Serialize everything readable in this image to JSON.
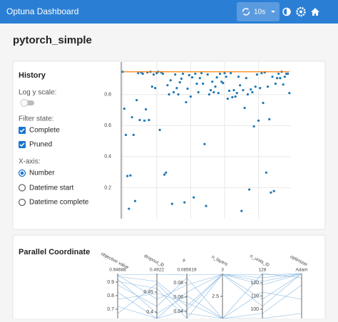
{
  "header": {
    "title": "Optuna Dashboard",
    "refresh": "10s"
  },
  "study_title": "pytorch_simple",
  "history": {
    "title": "History",
    "log_scale_label": "Log y scale:",
    "filter_label": "Filter state:",
    "filters": [
      "Complete",
      "Pruned"
    ],
    "xaxis_label": "X-axis:",
    "xaxis_options": [
      "Number",
      "Datetime start",
      "Datetime complete"
    ],
    "chart_data": {
      "type": "scatter",
      "color": "#1f77b4",
      "best_color": "#ff7f0e",
      "best_value": 0.947,
      "x": [
        0,
        1,
        2,
        3,
        4,
        5,
        6,
        7,
        8,
        9,
        10,
        11,
        12,
        13,
        14,
        15,
        16,
        17,
        18,
        19,
        20,
        21,
        22,
        23,
        24,
        25,
        26,
        27,
        28,
        29,
        30,
        31,
        32,
        33,
        34,
        35,
        36,
        37,
        38,
        39,
        40,
        41,
        42,
        43,
        44,
        45,
        46,
        47,
        48,
        49,
        50,
        51,
        52,
        53,
        54,
        55,
        56,
        57,
        58,
        59,
        60,
        61,
        62,
        63,
        64,
        65,
        66,
        67,
        68,
        69,
        70,
        71,
        72,
        73,
        74,
        75,
        76,
        77,
        78,
        79,
        80,
        81,
        82,
        83,
        84,
        85,
        86,
        87,
        88,
        89,
        90,
        91,
        92,
        93,
        94,
        95,
        96,
        97,
        98,
        99,
        100,
        101,
        102,
        103,
        104,
        105,
        106,
        107,
        108
      ],
      "values": [
        0.947,
        0.709,
        0.54,
        0.275,
        0.064,
        0.279,
        0.654,
        0.54,
        0.114,
        0.764,
        0.938,
        0.636,
        0.943,
        0.934,
        0.632,
        0.705,
        0.943,
        0.636,
        0.947,
        0.851,
        0.929,
        0.842,
        0.938,
        0.947,
        0.572,
        0.943,
        0.934,
        0.284,
        0.297,
        0.86,
        0.801,
        0.892,
        0.096,
        0.815,
        0.929,
        0.842,
        0.801,
        0.879,
        0.902,
        0.934,
        0.105,
        0.751,
        0.838,
        0.925,
        0.787,
        0.911,
        0.137,
        0.934,
        0.87,
        0.815,
        0.906,
        0.938,
        0.87,
        0.481,
        0.082,
        0.929,
        0.801,
        0.828,
        0.883,
        0.815,
        0.851,
        0.911,
        0.81,
        0.934,
        0.883,
        0.874,
        0.938,
        0.915,
        0.773,
        0.824,
        0.938,
        0.783,
        0.828,
        0.787,
        0.81,
        0.915,
        0.86,
        0.05,
        0.828,
        0.714,
        0.906,
        0.801,
        0.188,
        0.833,
        0.815,
        0.595,
        0.851,
        0.929,
        0.632,
        0.842,
        0.938,
        0.746,
        0.943,
        0.297,
        0.851,
        0.641,
        0.169,
        0.915,
        0.178,
        0.87,
        0.906,
        0.934,
        0.906,
        0.947,
        0.865,
        0.915,
        0.934,
        0.934,
        0.81
      ],
      "xlim": [
        -1,
        109
      ],
      "xticks": [
        0,
        22,
        44,
        66,
        88
      ],
      "ylim": [
        0,
        1.01
      ],
      "yticks": [
        0.2,
        0.4,
        0.6,
        0.8
      ],
      "grid": true
    }
  },
  "parallel_coordinate": {
    "title": "Parallel Coordinate",
    "axes": [
      {
        "label": "objective value",
        "top": "0.94688",
        "ticks": [
          0.9,
          0.8,
          0.7
        ]
      },
      {
        "label": "dropout_l0",
        "top": "0.4922",
        "ticks": [
          0.45,
          0.4
        ]
      },
      {
        "label": "lr",
        "top": "0.085619",
        "ticks": [
          0.08,
          0.06,
          0.04
        ]
      },
      {
        "label": "n_layers",
        "top": "3",
        "ticks": [
          2.5
        ]
      },
      {
        "label": "n_units_l0",
        "top": "128",
        "ticks": [
          120,
          110,
          100
        ]
      },
      {
        "label": "optimizer",
        "top": "Adam",
        "ticks": []
      }
    ]
  }
}
